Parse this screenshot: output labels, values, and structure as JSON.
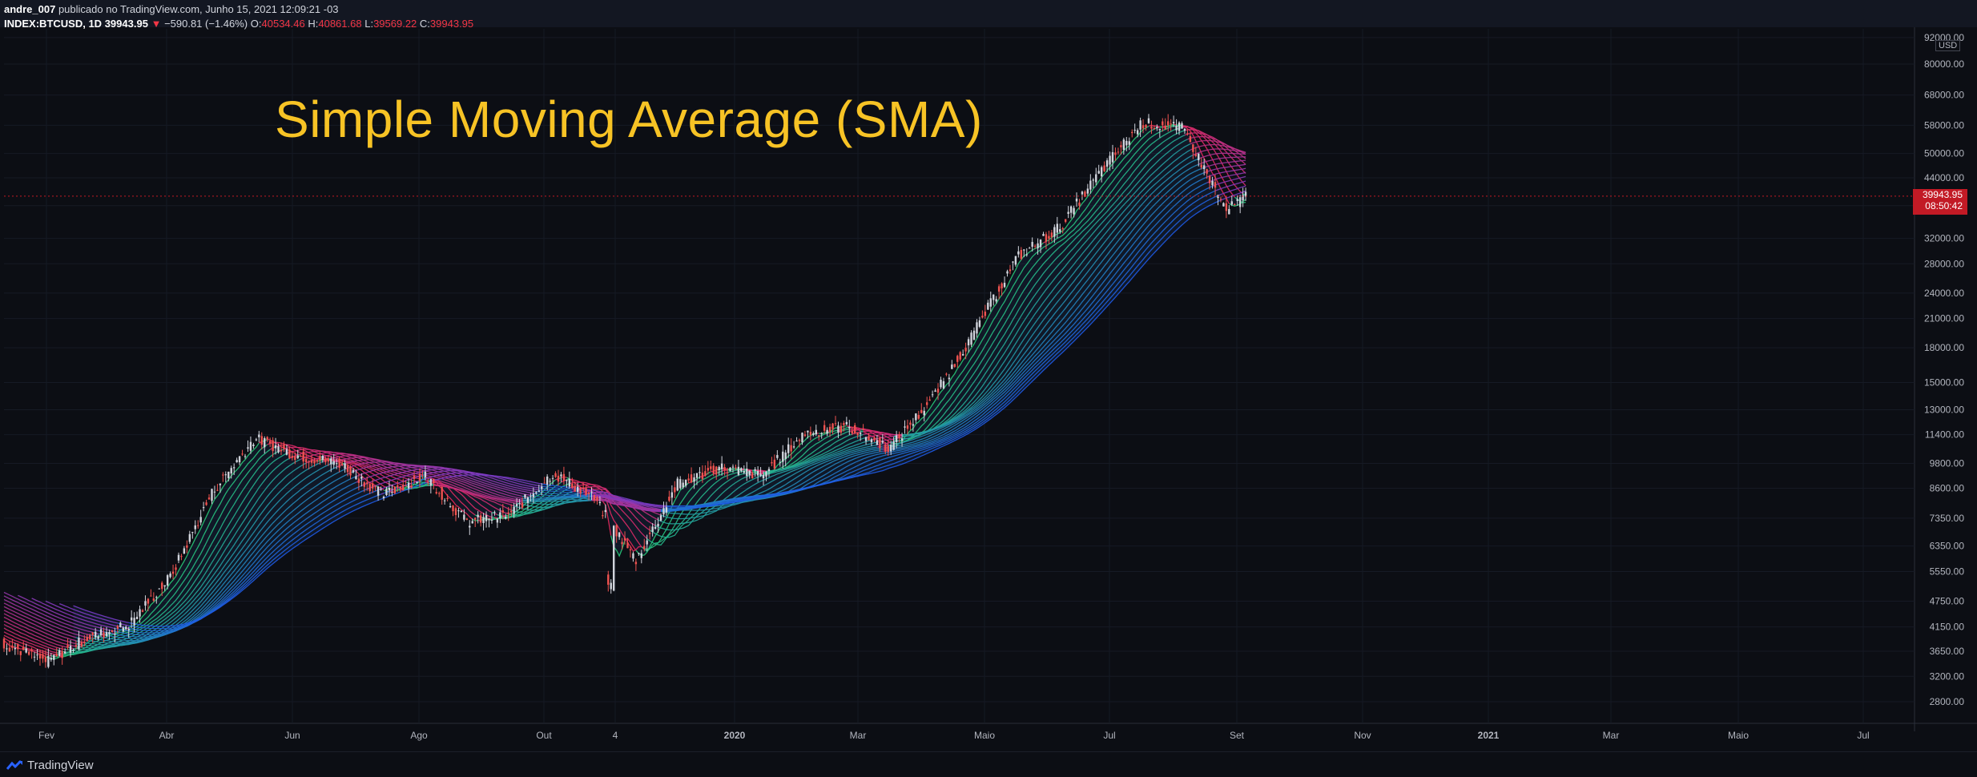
{
  "header": {
    "author": "andre_007",
    "publish_text": "publicado no TradingView.com, Junho 15, 2021 12:09:21 -03",
    "symbol": "INDEX:BTCUSD, 1D",
    "last": "39943.95",
    "change_arrow": "▼",
    "change": "−590.81 (−1.46%)",
    "o_label": "O:",
    "o": "40534.46",
    "h_label": "H:",
    "h": "40861.68",
    "l_label": "L:",
    "l": "39569.22",
    "c_label": "C:",
    "c": "39943.95"
  },
  "footer": {
    "brand": "TradingView",
    "icon": "tradingview-logo-icon"
  },
  "current_price": {
    "price": "39943.95",
    "countdown": "08:50:42"
  },
  "colors": {
    "up": "#26a69a",
    "down": "#ef5350",
    "title": "#f7c325",
    "price_tag": "#c21a25"
  },
  "chart_data": {
    "type": "line",
    "title": "Simple Moving Average (SMA)",
    "currency_label": "USD",
    "y_scale": "log",
    "ylim": [
      2400,
      92000
    ],
    "y_ticks": [
      92000,
      80000,
      68000,
      58000,
      50000,
      44000,
      38000,
      32000,
      28000,
      24000,
      21000,
      18000,
      15000,
      13000,
      11400,
      9800,
      8600,
      7350,
      6350,
      5550,
      4750,
      4150,
      3650,
      3200,
      2800
    ],
    "y_tick_labels": [
      "92000.00",
      "80000.00",
      "68000.00",
      "58000.00",
      "50000.00",
      "44000.00",
      "",
      "32000.00",
      "28000.00",
      "24000.00",
      "21000.00",
      "18000.00",
      "15000.00",
      "13000.00",
      "11400.00",
      "9800.00",
      "8600.00",
      "7350.00",
      "6350.00",
      "5550.00",
      "4750.00",
      "4150.00",
      "3650.00",
      "3200.00",
      "2800.00"
    ],
    "x_ticks": [
      "Fev",
      "Abr",
      "Jun",
      "Ago",
      "Out",
      "4",
      "2020",
      "Mar",
      "Maio",
      "Jul",
      "Set",
      "Nov",
      "2021",
      "Mar",
      "Maio",
      "Jul"
    ],
    "x_ticks_bold": [
      "2020",
      "2021"
    ],
    "x_dates": [
      "2019-01-01",
      "2019-02-01",
      "2019-03-01",
      "2019-04-01",
      "2019-05-01",
      "2019-06-01",
      "2019-07-01",
      "2019-08-01",
      "2019-09-01",
      "2019-10-01",
      "2019-11-01",
      "2019-12-01",
      "2020-01-01",
      "2020-02-01",
      "2020-03-01",
      "2020-04-01",
      "2020-05-01",
      "2020-06-01",
      "2020-07-01",
      "2020-08-01",
      "2020-09-01",
      "2020-10-01",
      "2020-11-01",
      "2020-12-01",
      "2021-01-01",
      "2021-02-01",
      "2021-03-01",
      "2021-04-01",
      "2021-05-01",
      "2021-06-01",
      "2021-06-15"
    ],
    "price_close": [
      3800,
      3450,
      3900,
      4200,
      5400,
      8500,
      11200,
      10200,
      9800,
      8300,
      9200,
      7200,
      7500,
      9300,
      8200,
      5900,
      8800,
      9600,
      9200,
      11500,
      11900,
      10600,
      13800,
      19500,
      29000,
      34000,
      45000,
      58800,
      57000,
      37000,
      39943.95
    ],
    "ma_periods": [
      10,
      20,
      30,
      40,
      50,
      60,
      70,
      80,
      90,
      100,
      110,
      120,
      130,
      140,
      150,
      160,
      170,
      180,
      190,
      200
    ],
    "series": []
  }
}
